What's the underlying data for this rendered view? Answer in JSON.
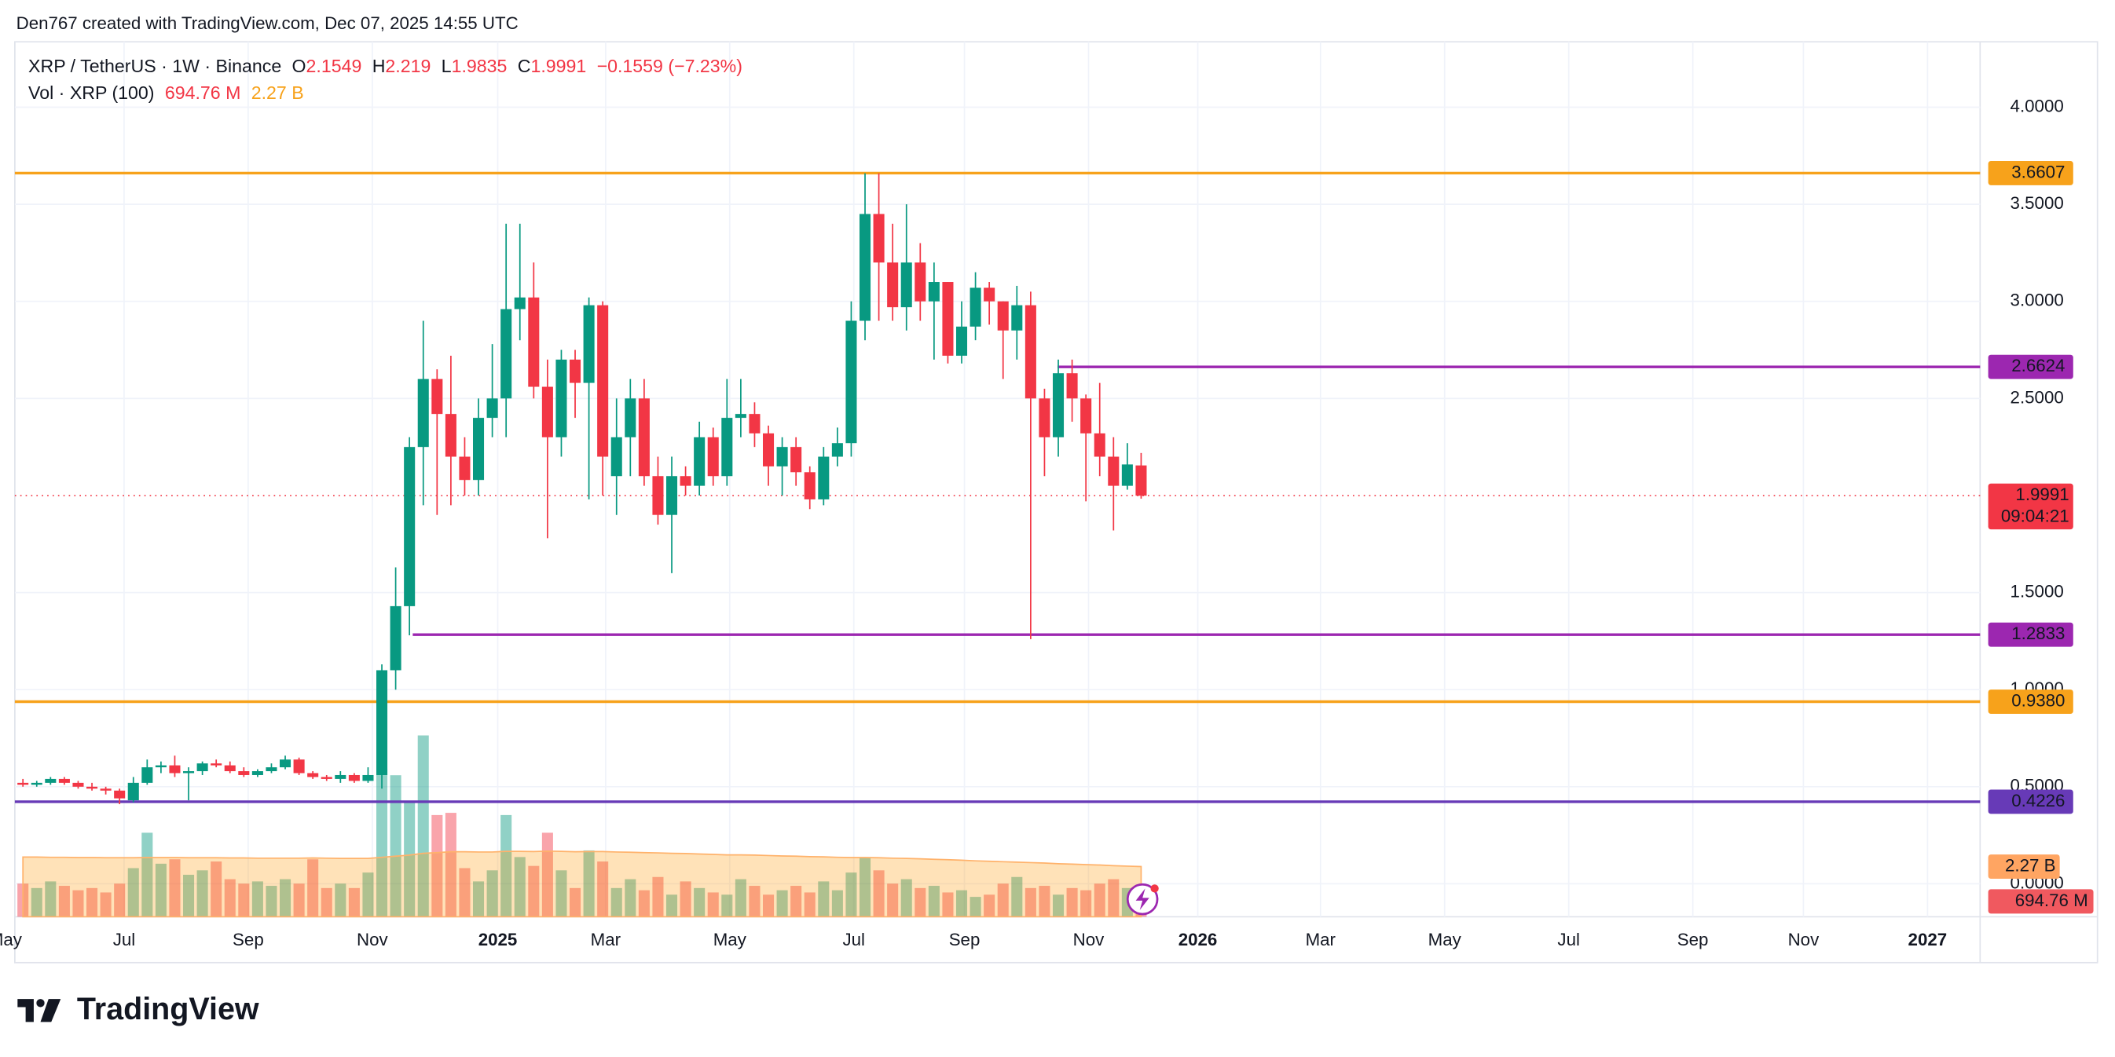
{
  "header": {
    "attribution": "Den767 created with TradingView.com, Dec 07, 2025 14:55 UTC"
  },
  "footer": {
    "logo": "TradingView"
  },
  "chart_data": {
    "type": "candlestick",
    "symbol": "XRP / TetherUS · 1W · Binance",
    "ohlc_letters": [
      "O",
      "H",
      "L",
      "C"
    ],
    "change": "−0.1559 (−7.23%)",
    "volume_title": "Vol · XRP (100)",
    "countdown": "09:04:21",
    "up_color": "#089981",
    "down_color": "#f23645",
    "grid": true,
    "ylim": [
      -0.17,
      4.33
    ],
    "yticks": [
      {
        "value": 4,
        "label": "4.0000"
      },
      {
        "value": 3.5,
        "label": "3.5000"
      },
      {
        "value": 3,
        "label": "3.0000"
      },
      {
        "value": 2.5,
        "label": "2.5000"
      },
      {
        "value": 1.5,
        "label": "1.5000"
      },
      {
        "value": 1,
        "label": "1.0000"
      },
      {
        "value": 0.5,
        "label": "0.5000"
      },
      {
        "value": 0,
        "label": "0.0000"
      }
    ],
    "xticks": [
      "May",
      "Jul",
      "Sep",
      "Nov",
      "2025",
      "Mar",
      "May",
      "Jul",
      "Sep",
      "Nov",
      "2026",
      "Mar",
      "May",
      "Jul",
      "Sep",
      "Nov",
      "2027"
    ],
    "levels": [
      {
        "value": 3.6607,
        "label": "3.6607",
        "color": "#f7a21b"
      },
      {
        "value": 2.6624,
        "label": "2.6624",
        "color": "#9c27b0"
      },
      {
        "value": 1.2833,
        "label": "1.2833",
        "color": "#9c27b0"
      },
      {
        "value": 0.938,
        "label": "0.9380",
        "color": "#f7a21b"
      },
      {
        "value": 0.4226,
        "label": "0.4226",
        "color": "#673ab7"
      }
    ],
    "candles": [
      [
        0.52,
        0.54,
        0.5,
        0.51
      ],
      [
        0.51,
        0.53,
        0.5,
        0.52
      ],
      [
        0.52,
        0.55,
        0.51,
        0.54
      ],
      [
        0.54,
        0.55,
        0.51,
        0.52
      ],
      [
        0.52,
        0.53,
        0.49,
        0.5
      ],
      [
        0.5,
        0.52,
        0.48,
        0.49
      ],
      [
        0.49,
        0.5,
        0.46,
        0.48
      ],
      [
        0.48,
        0.49,
        0.41,
        0.44
      ],
      [
        0.43,
        0.55,
        0.42,
        0.52
      ],
      [
        0.52,
        0.64,
        0.51,
        0.6
      ],
      [
        0.6,
        0.63,
        0.57,
        0.61
      ],
      [
        0.61,
        0.66,
        0.55,
        0.57
      ],
      [
        0.57,
        0.6,
        0.43,
        0.58
      ],
      [
        0.58,
        0.63,
        0.56,
        0.62
      ],
      [
        0.62,
        0.64,
        0.6,
        0.61
      ],
      [
        0.61,
        0.63,
        0.57,
        0.58
      ],
      [
        0.58,
        0.6,
        0.55,
        0.56
      ],
      [
        0.56,
        0.59,
        0.55,
        0.58
      ],
      [
        0.58,
        0.62,
        0.57,
        0.6
      ],
      [
        0.6,
        0.66,
        0.59,
        0.64
      ],
      [
        0.64,
        0.65,
        0.56,
        0.57
      ],
      [
        0.57,
        0.58,
        0.54,
        0.55
      ],
      [
        0.55,
        0.56,
        0.53,
        0.54
      ],
      [
        0.54,
        0.58,
        0.52,
        0.56
      ],
      [
        0.56,
        0.57,
        0.52,
        0.53
      ],
      [
        0.53,
        0.6,
        0.52,
        0.56
      ],
      [
        0.56,
        1.13,
        0.49,
        1.1
      ],
      [
        1.1,
        1.63,
        1.0,
        1.43
      ],
      [
        1.43,
        2.3,
        1.28,
        2.25
      ],
      [
        2.25,
        2.9,
        1.95,
        2.6
      ],
      [
        2.6,
        2.65,
        1.9,
        2.42
      ],
      [
        2.42,
        2.72,
        1.95,
        2.2
      ],
      [
        2.2,
        2.3,
        2.0,
        2.08
      ],
      [
        2.08,
        2.5,
        2.0,
        2.4
      ],
      [
        2.4,
        2.78,
        2.3,
        2.5
      ],
      [
        2.5,
        3.4,
        2.3,
        2.96
      ],
      [
        2.96,
        3.4,
        2.8,
        3.02
      ],
      [
        3.02,
        3.2,
        2.5,
        2.56
      ],
      [
        2.56,
        2.7,
        1.78,
        2.3
      ],
      [
        2.3,
        2.75,
        2.2,
        2.7
      ],
      [
        2.7,
        2.75,
        2.4,
        2.58
      ],
      [
        2.58,
        3.02,
        1.98,
        2.98
      ],
      [
        2.98,
        3.0,
        2.0,
        2.2
      ],
      [
        2.1,
        2.5,
        1.9,
        2.3
      ],
      [
        2.3,
        2.6,
        2.1,
        2.5
      ],
      [
        2.5,
        2.6,
        2.05,
        2.1
      ],
      [
        2.1,
        2.2,
        1.85,
        1.9
      ],
      [
        1.9,
        2.2,
        1.6,
        2.1
      ],
      [
        2.1,
        2.15,
        2.0,
        2.05
      ],
      [
        2.05,
        2.38,
        2.0,
        2.3
      ],
      [
        2.3,
        2.35,
        2.05,
        2.1
      ],
      [
        2.1,
        2.6,
        2.05,
        2.4
      ],
      [
        2.4,
        2.6,
        2.3,
        2.42
      ],
      [
        2.42,
        2.48,
        2.25,
        2.32
      ],
      [
        2.32,
        2.36,
        2.05,
        2.15
      ],
      [
        2.15,
        2.3,
        2.0,
        2.25
      ],
      [
        2.25,
        2.3,
        2.05,
        2.12
      ],
      [
        2.12,
        2.15,
        1.93,
        1.98
      ],
      [
        1.98,
        2.25,
        1.95,
        2.2
      ],
      [
        2.2,
        2.35,
        2.15,
        2.27
      ],
      [
        2.27,
        3.0,
        2.2,
        2.9
      ],
      [
        2.9,
        3.66,
        2.8,
        3.45
      ],
      [
        3.45,
        3.66,
        2.9,
        3.2
      ],
      [
        3.2,
        3.4,
        2.9,
        2.97
      ],
      [
        2.97,
        3.5,
        2.85,
        3.2
      ],
      [
        3.2,
        3.3,
        2.9,
        3.0
      ],
      [
        3.0,
        3.2,
        2.7,
        3.1
      ],
      [
        3.1,
        3.1,
        2.68,
        2.72
      ],
      [
        2.72,
        3.0,
        2.68,
        2.87
      ],
      [
        2.87,
        3.15,
        2.8,
        3.07
      ],
      [
        3.07,
        3.1,
        2.88,
        3.0
      ],
      [
        3.0,
        3.0,
        2.6,
        2.85
      ],
      [
        2.85,
        3.08,
        2.7,
        2.98
      ],
      [
        2.98,
        3.05,
        1.26,
        2.5
      ],
      [
        2.5,
        2.55,
        2.1,
        2.3
      ],
      [
        2.3,
        2.7,
        2.2,
        2.63
      ],
      [
        2.63,
        2.7,
        2.38,
        2.5
      ],
      [
        2.5,
        2.52,
        1.97,
        2.32
      ],
      [
        2.32,
        2.58,
        2.1,
        2.2
      ],
      [
        2.2,
        2.3,
        1.82,
        2.05
      ],
      [
        2.05,
        2.27,
        2.03,
        2.16
      ],
      [
        2.1549,
        2.219,
        1.9835,
        1.9991
      ]
    ],
    "volume_ylim": [
      0,
      39500
    ],
    "volume": [
      1500,
      1300,
      1600,
      1400,
      1200,
      1300,
      1100,
      1500,
      2200,
      3800,
      2400,
      2600,
      1900,
      2100,
      2500,
      1700,
      1500,
      1600,
      1400,
      1700,
      1500,
      2600,
      1300,
      1500,
      1300,
      2000,
      6700,
      6400,
      5200,
      8200,
      4600,
      4700,
      2200,
      1600,
      2100,
      4600,
      2700,
      2300,
      3800,
      2100,
      1300,
      3000,
      2500,
      1300,
      1700,
      1200,
      1800,
      1000,
      1600,
      1300,
      1100,
      1000,
      1700,
      1400,
      1000,
      1200,
      1400,
      1100,
      1600,
      1200,
      2000,
      2700,
      2100,
      1500,
      1700,
      1300,
      1400,
      1100,
      1200,
      900,
      1000,
      1500,
      1800,
      1300,
      1400,
      1000,
      1300,
      1200,
      1500,
      1700,
      1300,
      694.76
    ],
    "volume_ma": [
      2700,
      2700,
      2690,
      2690,
      2680,
      2680,
      2670,
      2670,
      2670,
      2680,
      2680,
      2680,
      2670,
      2670,
      2670,
      2660,
      2660,
      2650,
      2650,
      2650,
      2650,
      2660,
      2650,
      2640,
      2640,
      2640,
      2690,
      2740,
      2790,
      2870,
      2900,
      2940,
      2940,
      2930,
      2930,
      2960,
      2960,
      2950,
      2970,
      2960,
      2940,
      2950,
      2950,
      2930,
      2920,
      2900,
      2890,
      2870,
      2860,
      2840,
      2820,
      2800,
      2800,
      2790,
      2770,
      2750,
      2740,
      2720,
      2710,
      2690,
      2680,
      2680,
      2670,
      2650,
      2640,
      2620,
      2600,
      2580,
      2560,
      2530,
      2510,
      2490,
      2470,
      2450,
      2430,
      2400,
      2380,
      2360,
      2340,
      2310,
      2290,
      2270
    ],
    "volume_value_label": "694.76 M",
    "volume_ma_value_label": "2.27 B"
  }
}
